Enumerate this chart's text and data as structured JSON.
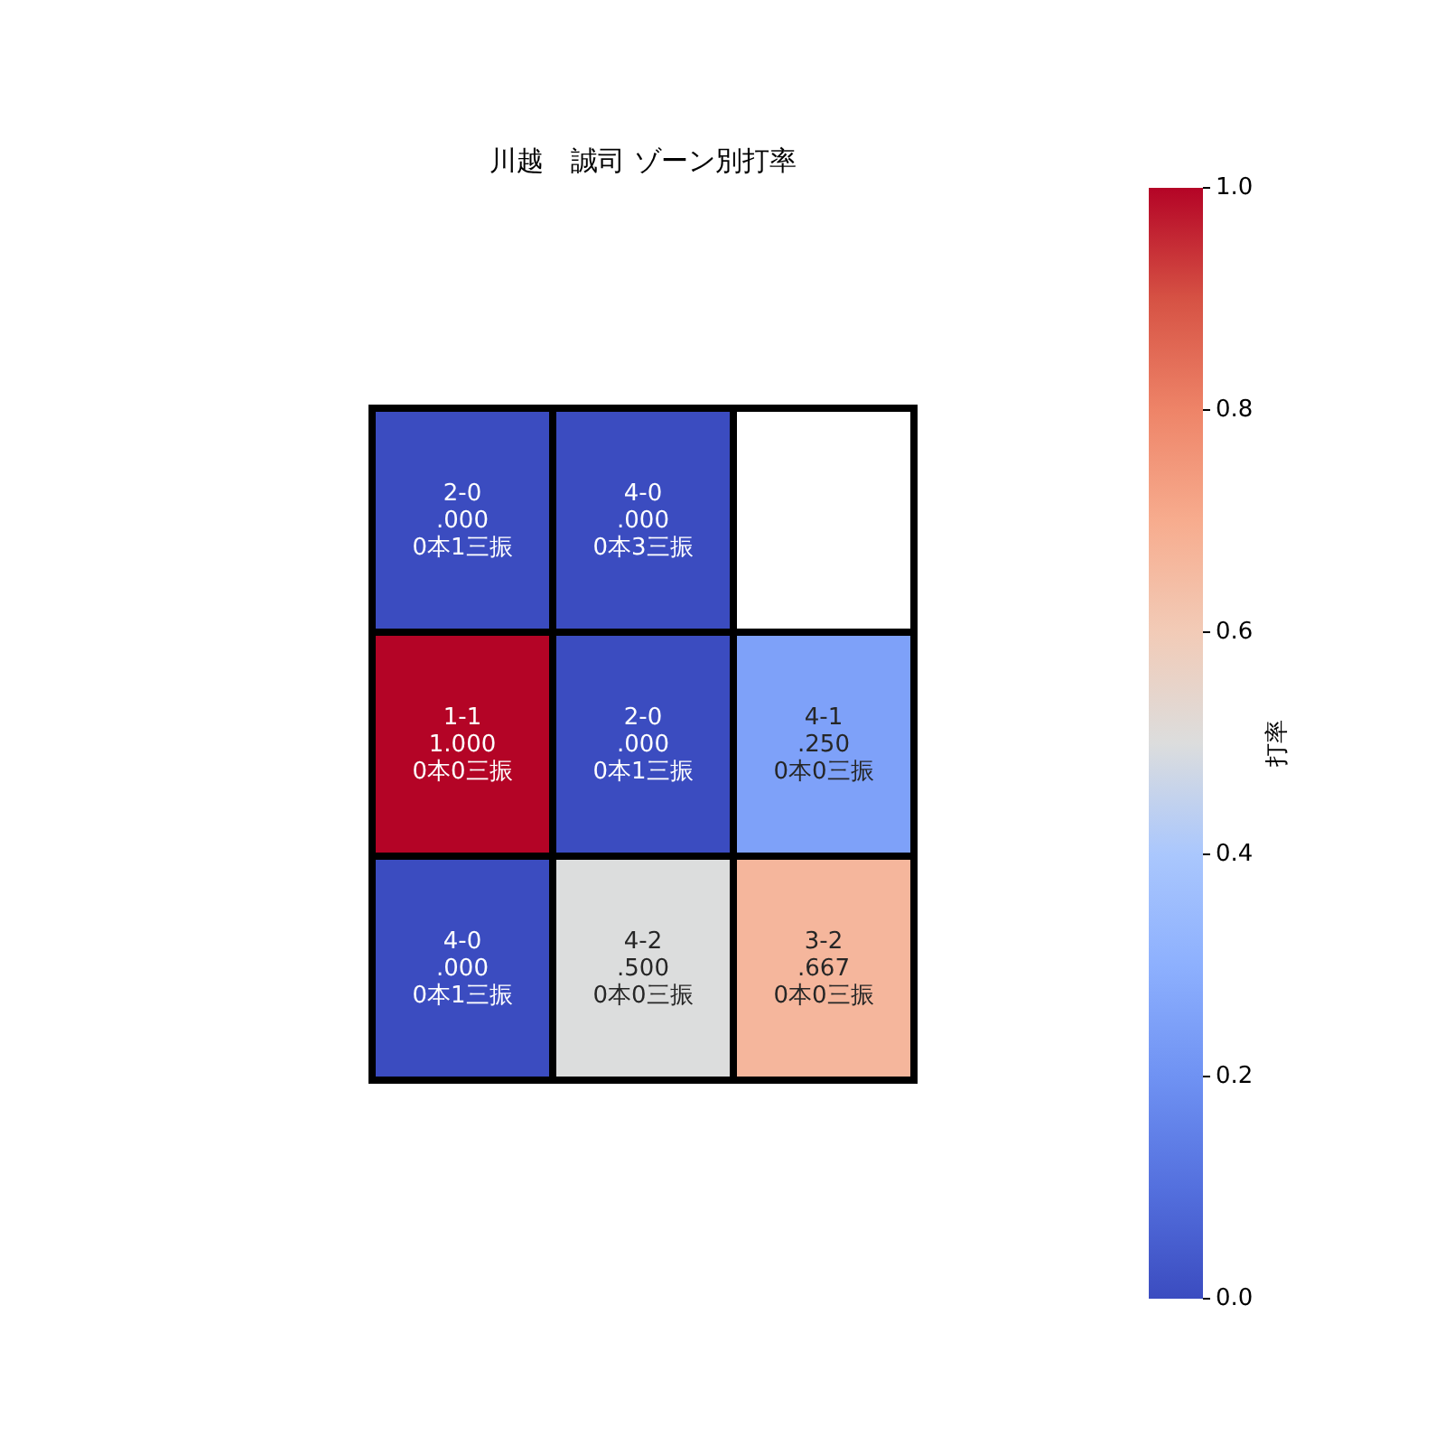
{
  "chart_data": {
    "type": "heatmap",
    "title": "川越　誠司 ゾーン別打率",
    "clabel": "打率",
    "categories": [
      null,
      null,
      null
    ],
    "y_categories": [
      null,
      null,
      null
    ],
    "cells": [
      [
        0,
        0,
        null
      ],
      [
        1,
        0,
        0.25
      ],
      [
        0,
        0.5,
        0.667
      ]
    ],
    "cell_labels": [
      [
        "2-0\n.000\n0本1三振",
        "4-0\n.000\n0本3三振",
        null
      ],
      [
        "1-1\n1.000\n0本0三振",
        "2-0\n.000\n0本1三振",
        "4-1\n.250\n0本0三振"
      ],
      [
        "4-0\n.000\n0本1三振",
        "4-2\n.500\n0本0三振",
        "3-2\n.667\n0本0三振"
      ]
    ],
    "clim": [
      0,
      1
    ],
    "cticks": [
      {
        "value": 0,
        "label": "0.0"
      },
      {
        "value": 0.2,
        "label": "0.2"
      },
      {
        "value": 0.4,
        "label": "0.4"
      },
      {
        "value": 0.6,
        "label": "0.6"
      },
      {
        "value": 0.8,
        "label": "0.8"
      },
      {
        "value": 1,
        "label": "1.0"
      }
    ]
  }
}
